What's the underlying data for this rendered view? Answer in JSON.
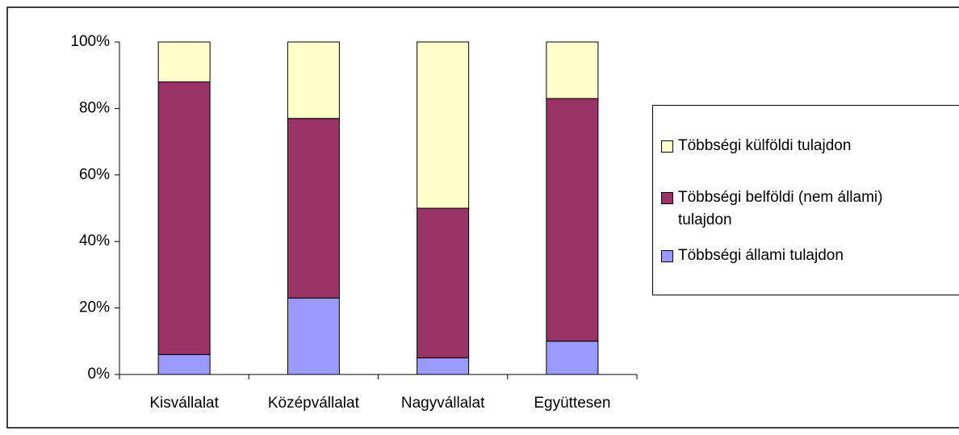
{
  "chart_data": {
    "type": "bar",
    "stacked": true,
    "categories": [
      "Kisvállalat",
      "Középvállalat",
      "Nagyvállalat",
      "Együttesen"
    ],
    "series": [
      {
        "name": "Többségi állami tulajdon",
        "color": "#9999ff",
        "values": [
          6,
          23,
          5,
          10
        ]
      },
      {
        "name": "Többségi belföldi (nem állami) tulajdon",
        "color": "#993366",
        "values": [
          82,
          54,
          45,
          73
        ]
      },
      {
        "name": "Többségi külföldi tulajdon",
        "color": "#ffffcc",
        "values": [
          12,
          23,
          50,
          17
        ]
      }
    ],
    "ylim": [
      0,
      100
    ],
    "yticks": [
      {
        "value": 0,
        "label": "0%"
      },
      {
        "value": 20,
        "label": "20%"
      },
      {
        "value": 40,
        "label": "40%"
      },
      {
        "value": 60,
        "label": "60%"
      },
      {
        "value": 80,
        "label": "80%"
      },
      {
        "value": 100,
        "label": "100%"
      }
    ],
    "grid": false,
    "legend": "right"
  }
}
